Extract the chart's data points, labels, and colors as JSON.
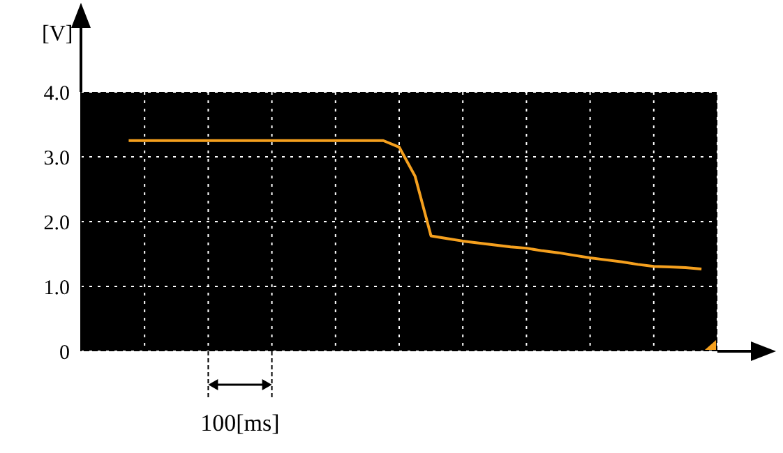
{
  "chart_data": {
    "type": "line",
    "ylabel": "[V]",
    "categories": [
      null,
      null,
      null,
      null,
      null,
      null,
      null,
      null,
      null,
      null,
      null,
      null,
      null,
      null,
      null,
      null,
      null,
      null,
      null,
      null,
      null,
      null,
      null,
      null,
      null,
      null,
      null,
      null,
      null,
      null,
      null,
      null,
      null,
      null,
      null,
      null,
      null,
      null,
      null,
      null,
      null
    ],
    "series": [
      {
        "color": "#f5a01e",
        "values": [
          null,
          null,
          null,
          3.25,
          3.25,
          3.25,
          3.25,
          3.25,
          3.25,
          3.25,
          3.25,
          3.25,
          3.25,
          3.25,
          3.25,
          3.25,
          3.25,
          3.25,
          3.25,
          3.25,
          3.15,
          2.7,
          1.78,
          1.74,
          1.7,
          1.67,
          1.64,
          1.61,
          1.59,
          1.55,
          1.52,
          1.48,
          1.44,
          1.41,
          1.38,
          1.34,
          1.31,
          1.3,
          1.29,
          1.27,
          null
        ]
      }
    ],
    "ylim": [
      0,
      4
    ],
    "yticks": [
      0,
      {
        "value": 1,
        "label": "1.0"
      },
      {
        "value": 2,
        "label": "2.0"
      },
      {
        "value": 3,
        "label": "3.0"
      },
      {
        "value": 4,
        "label": "4.0"
      }
    ],
    "grid": true,
    "marker": "none",
    "line_style": "solid",
    "annotations": [
      "100[ms]"
    ]
  }
}
